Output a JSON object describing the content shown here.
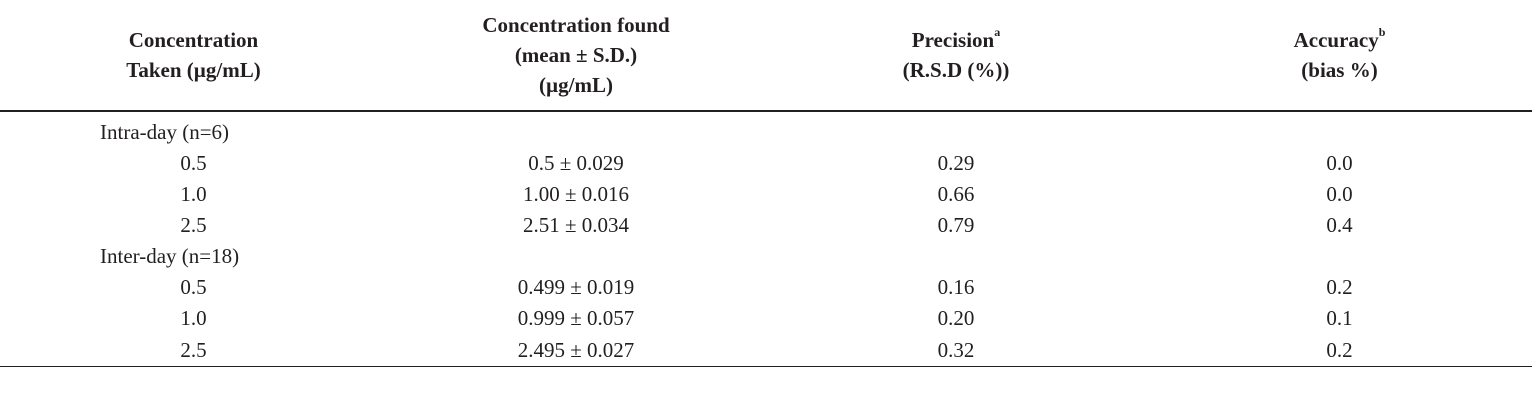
{
  "headers": {
    "col1": {
      "line1": "Concentration",
      "line2": "Taken (µg/mL)"
    },
    "col2": {
      "line1": "Concentration found",
      "line2": "(mean ± S.D.)",
      "line3": "(µg/mL)"
    },
    "col3": {
      "line1": "Precision",
      "sup": "a",
      "line2": "(R.S.D (%))"
    },
    "col4": {
      "line1": "Accuracy",
      "sup": "b",
      "line2": "(bias %)"
    }
  },
  "groups": [
    {
      "label": "Intra-day (n=6)",
      "rows": [
        {
          "taken": "0.5",
          "found": "0.5 ± 0.029",
          "precision": "0.29",
          "accuracy": "0.0"
        },
        {
          "taken": "1.0",
          "found": "1.00 ± 0.016",
          "precision": "0.66",
          "accuracy": "0.0"
        },
        {
          "taken": "2.5",
          "found": "2.51 ± 0.034",
          "precision": "0.79",
          "accuracy": "0.4"
        }
      ]
    },
    {
      "label": "Inter-day (n=18)",
      "rows": [
        {
          "taken": "0.5",
          "found": "0.499 ± 0.019",
          "precision": "0.16",
          "accuracy": "0.2"
        },
        {
          "taken": "1.0",
          "found": "0.999 ± 0.057",
          "precision": "0.20",
          "accuracy": "0.1"
        },
        {
          "taken": "2.5",
          "found": "2.495 ± 0.027",
          "precision": "0.32",
          "accuracy": "0.2"
        }
      ]
    }
  ]
}
